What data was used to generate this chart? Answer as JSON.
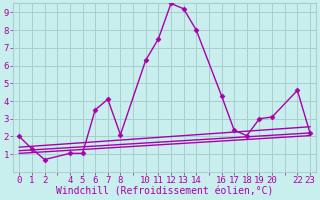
{
  "xlabel": "Windchill (Refroidissement éolien,°C)",
  "background_color": "#c8eeee",
  "grid_color": "#a8cece",
  "line_color": "#aa00aa",
  "xlim": [
    -0.5,
    23.5
  ],
  "ylim": [
    0,
    9.5
  ],
  "xtick_positions": [
    0,
    1,
    2,
    3,
    4,
    5,
    6,
    7,
    8,
    9,
    10,
    11,
    12,
    13,
    14,
    15,
    16,
    17,
    18,
    19,
    20,
    21,
    22,
    23
  ],
  "xtick_labels": [
    "0",
    "1",
    "2",
    "",
    "4",
    "5",
    "6",
    "7",
    "8",
    "",
    "10",
    "11",
    "12",
    "13",
    "14",
    "",
    "16",
    "17",
    "18",
    "19",
    "20",
    "",
    "22",
    "23"
  ],
  "ytick_positions": [
    1,
    2,
    3,
    4,
    5,
    6,
    7,
    8,
    9
  ],
  "ytick_labels": [
    "1",
    "2",
    "3",
    "4",
    "5",
    "6",
    "7",
    "8",
    "9"
  ],
  "lines": [
    {
      "x": [
        0,
        1,
        2,
        4,
        5,
        6,
        7,
        8,
        10,
        11,
        12,
        13,
        14,
        16,
        17,
        18,
        19,
        20,
        22,
        23
      ],
      "y": [
        2.0,
        1.3,
        0.7,
        1.05,
        1.05,
        3.5,
        4.1,
        2.1,
        6.3,
        7.5,
        9.5,
        9.2,
        8.0,
        4.3,
        2.35,
        2.05,
        3.0,
        3.1,
        4.6,
        2.2
      ],
      "marker": true
    },
    {
      "x": [
        0,
        23
      ],
      "y": [
        1.05,
        2.05
      ],
      "marker": false
    },
    {
      "x": [
        0,
        23
      ],
      "y": [
        1.2,
        2.2
      ],
      "marker": false
    },
    {
      "x": [
        0,
        23
      ],
      "y": [
        1.4,
        2.55
      ],
      "marker": false
    }
  ],
  "font_family": "monospace",
  "xlabel_fontsize": 7,
  "tick_fontsize": 6.5,
  "linewidth": 1.0,
  "markersize": 2.5
}
